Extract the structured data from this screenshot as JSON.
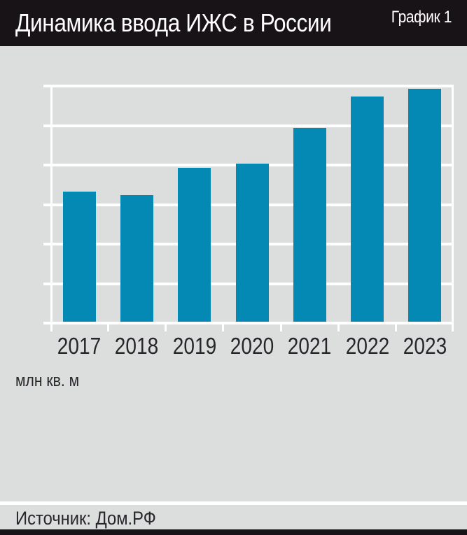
{
  "header": {
    "title": "Динамика ввода ИЖС в России",
    "badge": "График 1"
  },
  "chart_data": {
    "type": "bar",
    "categories": [
      "2017",
      "2018",
      "2019",
      "2020",
      "2021",
      "2022",
      "2023"
    ],
    "values": [
      33,
      32,
      39,
      40,
      49,
      57,
      59
    ],
    "title": "Динамика ввода ИЖС в России",
    "xlabel": "",
    "ylabel": "млн кв. м",
    "ylim": [
      0,
      60
    ],
    "yticks": [
      0,
      10,
      20,
      30,
      40,
      50,
      60
    ],
    "grid": true,
    "legend": "none",
    "bar_color": "#0489b5",
    "plot_background": "#dcdddd",
    "gridline_color": "#ffffff"
  },
  "footer": {
    "source": "Источник: Дом.РФ"
  },
  "colors": {
    "header_background": "#181317",
    "page_background": "#dcdddd",
    "bar": "#0489b5",
    "text": "#29262b",
    "grid": "#ffffff"
  }
}
